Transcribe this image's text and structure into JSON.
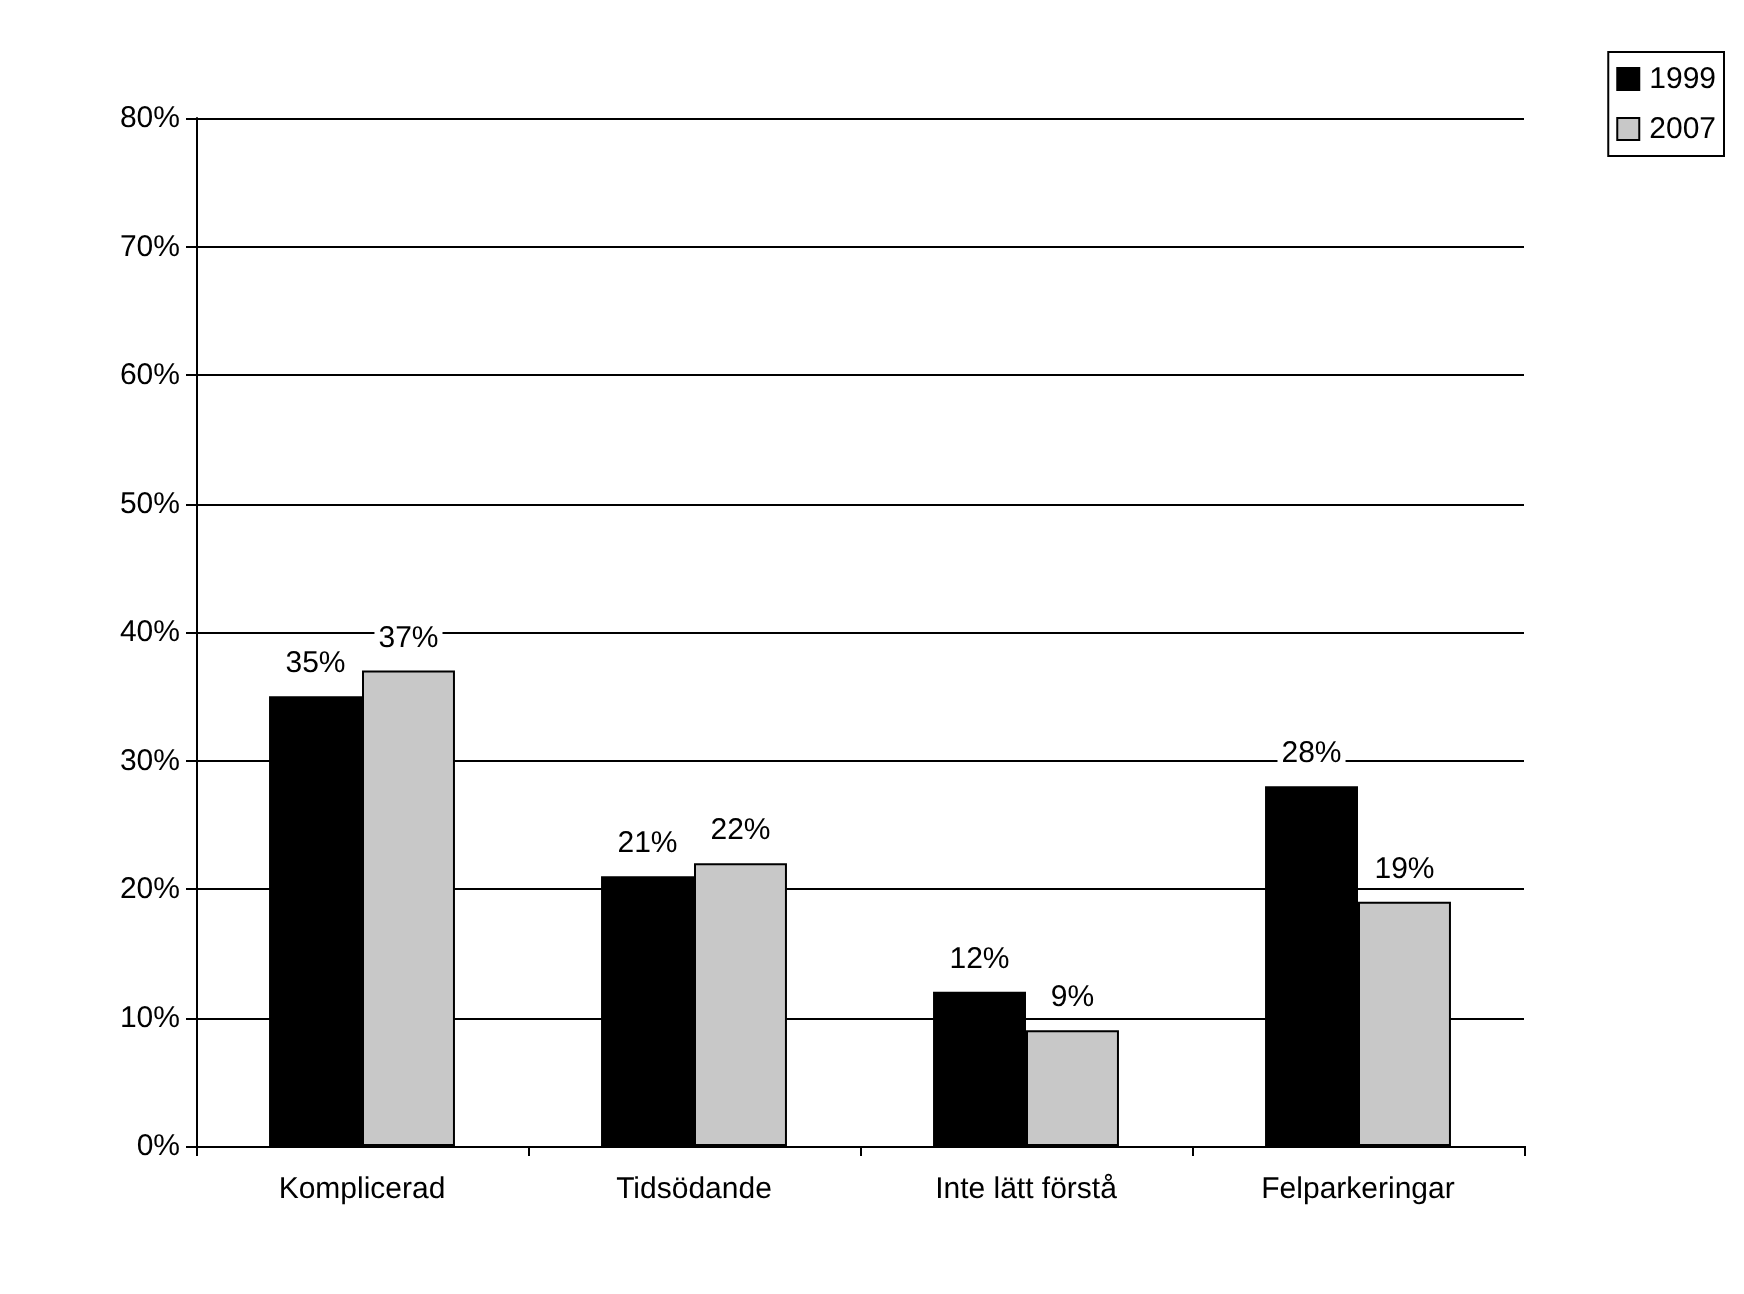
{
  "chart_data": {
    "type": "bar",
    "categories": [
      "Komplicerad",
      "Tidsödande",
      "Inte lätt förstå",
      "Felparkeringar"
    ],
    "series": [
      {
        "name": "1999",
        "color": "#000000",
        "values": [
          35,
          21,
          12,
          28
        ],
        "value_labels": [
          "35%",
          "21%",
          "12%",
          "28%"
        ]
      },
      {
        "name": "2007",
        "color": "#c8c8c8",
        "values": [
          37,
          22,
          9,
          19
        ],
        "value_labels": [
          "37%",
          "22%",
          "9%",
          "19%"
        ]
      }
    ],
    "ylim": [
      0,
      80
    ],
    "yticks": [
      {
        "value": 0,
        "label": "0%"
      },
      {
        "value": 10,
        "label": "10%"
      },
      {
        "value": 20,
        "label": "20%"
      },
      {
        "value": 30,
        "label": "30%"
      },
      {
        "value": 40,
        "label": "40%"
      },
      {
        "value": 50,
        "label": "50%"
      },
      {
        "value": 60,
        "label": "60%"
      },
      {
        "value": 70,
        "label": "70%"
      },
      {
        "value": 80,
        "label": "80%"
      }
    ],
    "grid": "y",
    "legend": "top right"
  }
}
